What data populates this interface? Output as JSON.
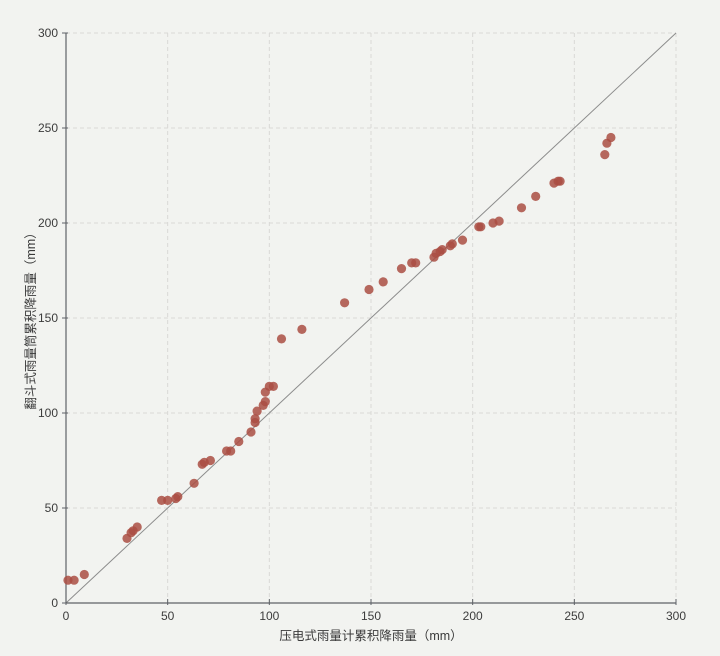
{
  "chart_data": {
    "type": "scatter",
    "title": "",
    "xlabel": "压电式雨量计累积降雨量（mm）",
    "ylabel": "翻斗式雨量筒累积降雨量（mm）",
    "xlim": [
      0,
      300
    ],
    "ylim": [
      0,
      300
    ],
    "xticks": [
      0,
      50,
      100,
      150,
      200,
      250,
      300
    ],
    "yticks": [
      0,
      50,
      100,
      150,
      200,
      250,
      300
    ],
    "grid": "dashed",
    "legend": "none",
    "reference_line": {
      "name": "identity-line-1to1",
      "from": [
        0,
        0
      ],
      "to": [
        300,
        300
      ]
    },
    "series": [
      {
        "name": "rain-gauge-comparison-points",
        "marker": "circle",
        "points": [
          [
            1,
            12
          ],
          [
            4,
            12
          ],
          [
            9,
            15
          ],
          [
            30,
            34
          ],
          [
            32,
            37
          ],
          [
            33,
            38
          ],
          [
            35,
            40
          ],
          [
            47,
            54
          ],
          [
            50,
            54
          ],
          [
            54,
            55
          ],
          [
            55,
            56
          ],
          [
            63,
            63
          ],
          [
            67,
            73
          ],
          [
            68,
            74
          ],
          [
            71,
            75
          ],
          [
            79,
            80
          ],
          [
            81,
            80
          ],
          [
            85,
            85
          ],
          [
            91,
            90
          ],
          [
            93,
            95
          ],
          [
            93,
            97
          ],
          [
            94,
            101
          ],
          [
            97,
            104
          ],
          [
            98,
            106
          ],
          [
            98,
            111
          ],
          [
            100,
            114
          ],
          [
            102,
            114
          ],
          [
            106,
            139
          ],
          [
            116,
            144
          ],
          [
            137,
            158
          ],
          [
            149,
            165
          ],
          [
            156,
            169
          ],
          [
            165,
            176
          ],
          [
            170,
            179
          ],
          [
            172,
            179
          ],
          [
            181,
            182
          ],
          [
            182,
            184
          ],
          [
            184,
            185
          ],
          [
            185,
            186
          ],
          [
            189,
            188
          ],
          [
            190,
            189
          ],
          [
            195,
            191
          ],
          [
            203,
            198
          ],
          [
            204,
            198
          ],
          [
            210,
            200
          ],
          [
            213,
            201
          ],
          [
            224,
            208
          ],
          [
            231,
            214
          ],
          [
            240,
            221
          ],
          [
            242,
            222
          ],
          [
            243,
            222
          ],
          [
            265,
            236
          ],
          [
            266,
            242
          ],
          [
            268,
            245
          ]
        ]
      }
    ]
  },
  "colors": {
    "background": "#f2f3f0",
    "point_fill": "#aa4d43",
    "point_opacity": 0.85,
    "axis_line": "#5f6267",
    "grid_line": "#d9d9d6",
    "reference_line": "#8c8c8c",
    "tick_label": "#3c3c3c",
    "axis_title": "#3a3a3a"
  }
}
